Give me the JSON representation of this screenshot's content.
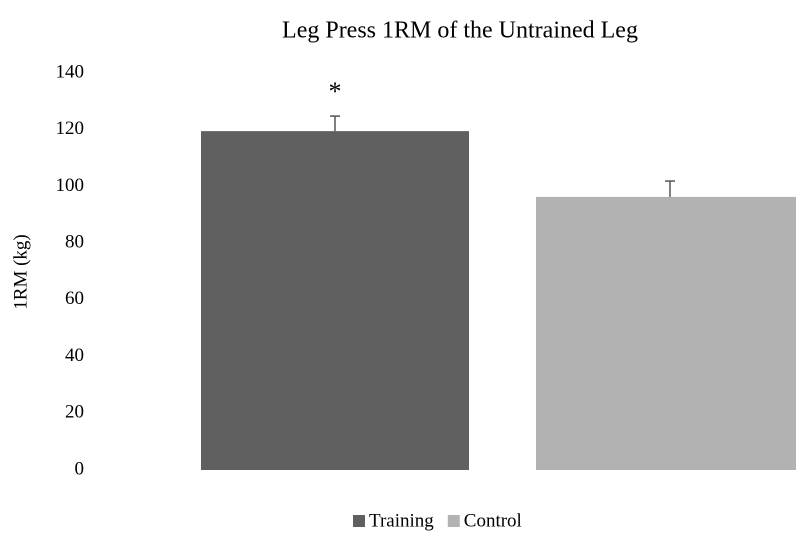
{
  "chart_data": {
    "type": "bar",
    "title": "Leg Press 1RM of the Untrained Leg",
    "y_label": "1RM (kg)",
    "annotation": "*",
    "categories": [
      null
    ],
    "series": [
      {
        "name": "Training",
        "color": "#606060",
        "values": [
          119.5
        ],
        "errors": [
          5.3
        ]
      },
      {
        "name": "Control",
        "color": "#b2b2b2",
        "values": [
          96.3
        ],
        "errors": [
          5.6
        ]
      }
    ],
    "ylim": [
      0,
      140
    ],
    "yticks": [
      0,
      20,
      40,
      60,
      80,
      100,
      120,
      140
    ],
    "grid": false,
    "legend": "bottom"
  }
}
